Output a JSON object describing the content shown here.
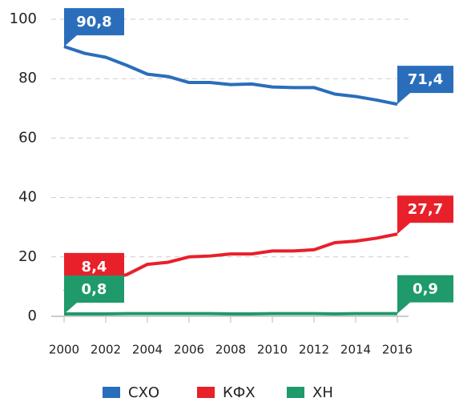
{
  "chart_data": {
    "type": "line",
    "x": [
      2000,
      2001,
      2002,
      2003,
      2004,
      2005,
      2006,
      2007,
      2008,
      2009,
      2010,
      2011,
      2012,
      2013,
      2014,
      2015,
      2016
    ],
    "xlim": [
      2000,
      2016
    ],
    "xticks": [
      2000,
      2002,
      2004,
      2006,
      2008,
      2010,
      2012,
      2014,
      2016
    ],
    "ylim": [
      0,
      100
    ],
    "yticks": [
      0,
      20,
      40,
      60,
      80,
      100
    ],
    "grid": true,
    "legend": "bottom",
    "series": [
      {
        "name": "СХО",
        "color": "#2a6ebb",
        "values": [
          90.8,
          88.5,
          87.2,
          84.5,
          81.5,
          80.7,
          78.7,
          78.7,
          78.0,
          78.2,
          77.2,
          77.0,
          77.0,
          74.8,
          74.0,
          72.8,
          71.4
        ],
        "value_labels": [
          "90,8",
          null,
          null,
          null,
          null,
          null,
          null,
          null,
          null,
          null,
          null,
          null,
          null,
          null,
          null,
          null,
          "71,4"
        ]
      },
      {
        "name": "КФХ",
        "color": "#e8202a",
        "values": [
          8.4,
          11.0,
          12.5,
          14.0,
          17.5,
          18.2,
          20.0,
          20.3,
          21.0,
          21.0,
          22.0,
          22.0,
          22.4,
          24.8,
          25.3,
          26.3,
          27.7
        ],
        "value_labels": [
          "8,4",
          null,
          null,
          null,
          null,
          null,
          null,
          null,
          null,
          null,
          null,
          null,
          null,
          null,
          null,
          null,
          "27,7"
        ]
      },
      {
        "name": "ХН",
        "color": "#1f9a6a",
        "values": [
          0.8,
          0.8,
          0.8,
          0.9,
          0.9,
          0.9,
          0.9,
          0.9,
          0.8,
          0.8,
          0.9,
          0.9,
          0.9,
          0.8,
          0.9,
          0.9,
          0.9
        ],
        "value_labels": [
          "0,8",
          null,
          null,
          null,
          null,
          null,
          null,
          null,
          null,
          null,
          null,
          null,
          null,
          null,
          null,
          null,
          "0,9"
        ]
      }
    ]
  }
}
